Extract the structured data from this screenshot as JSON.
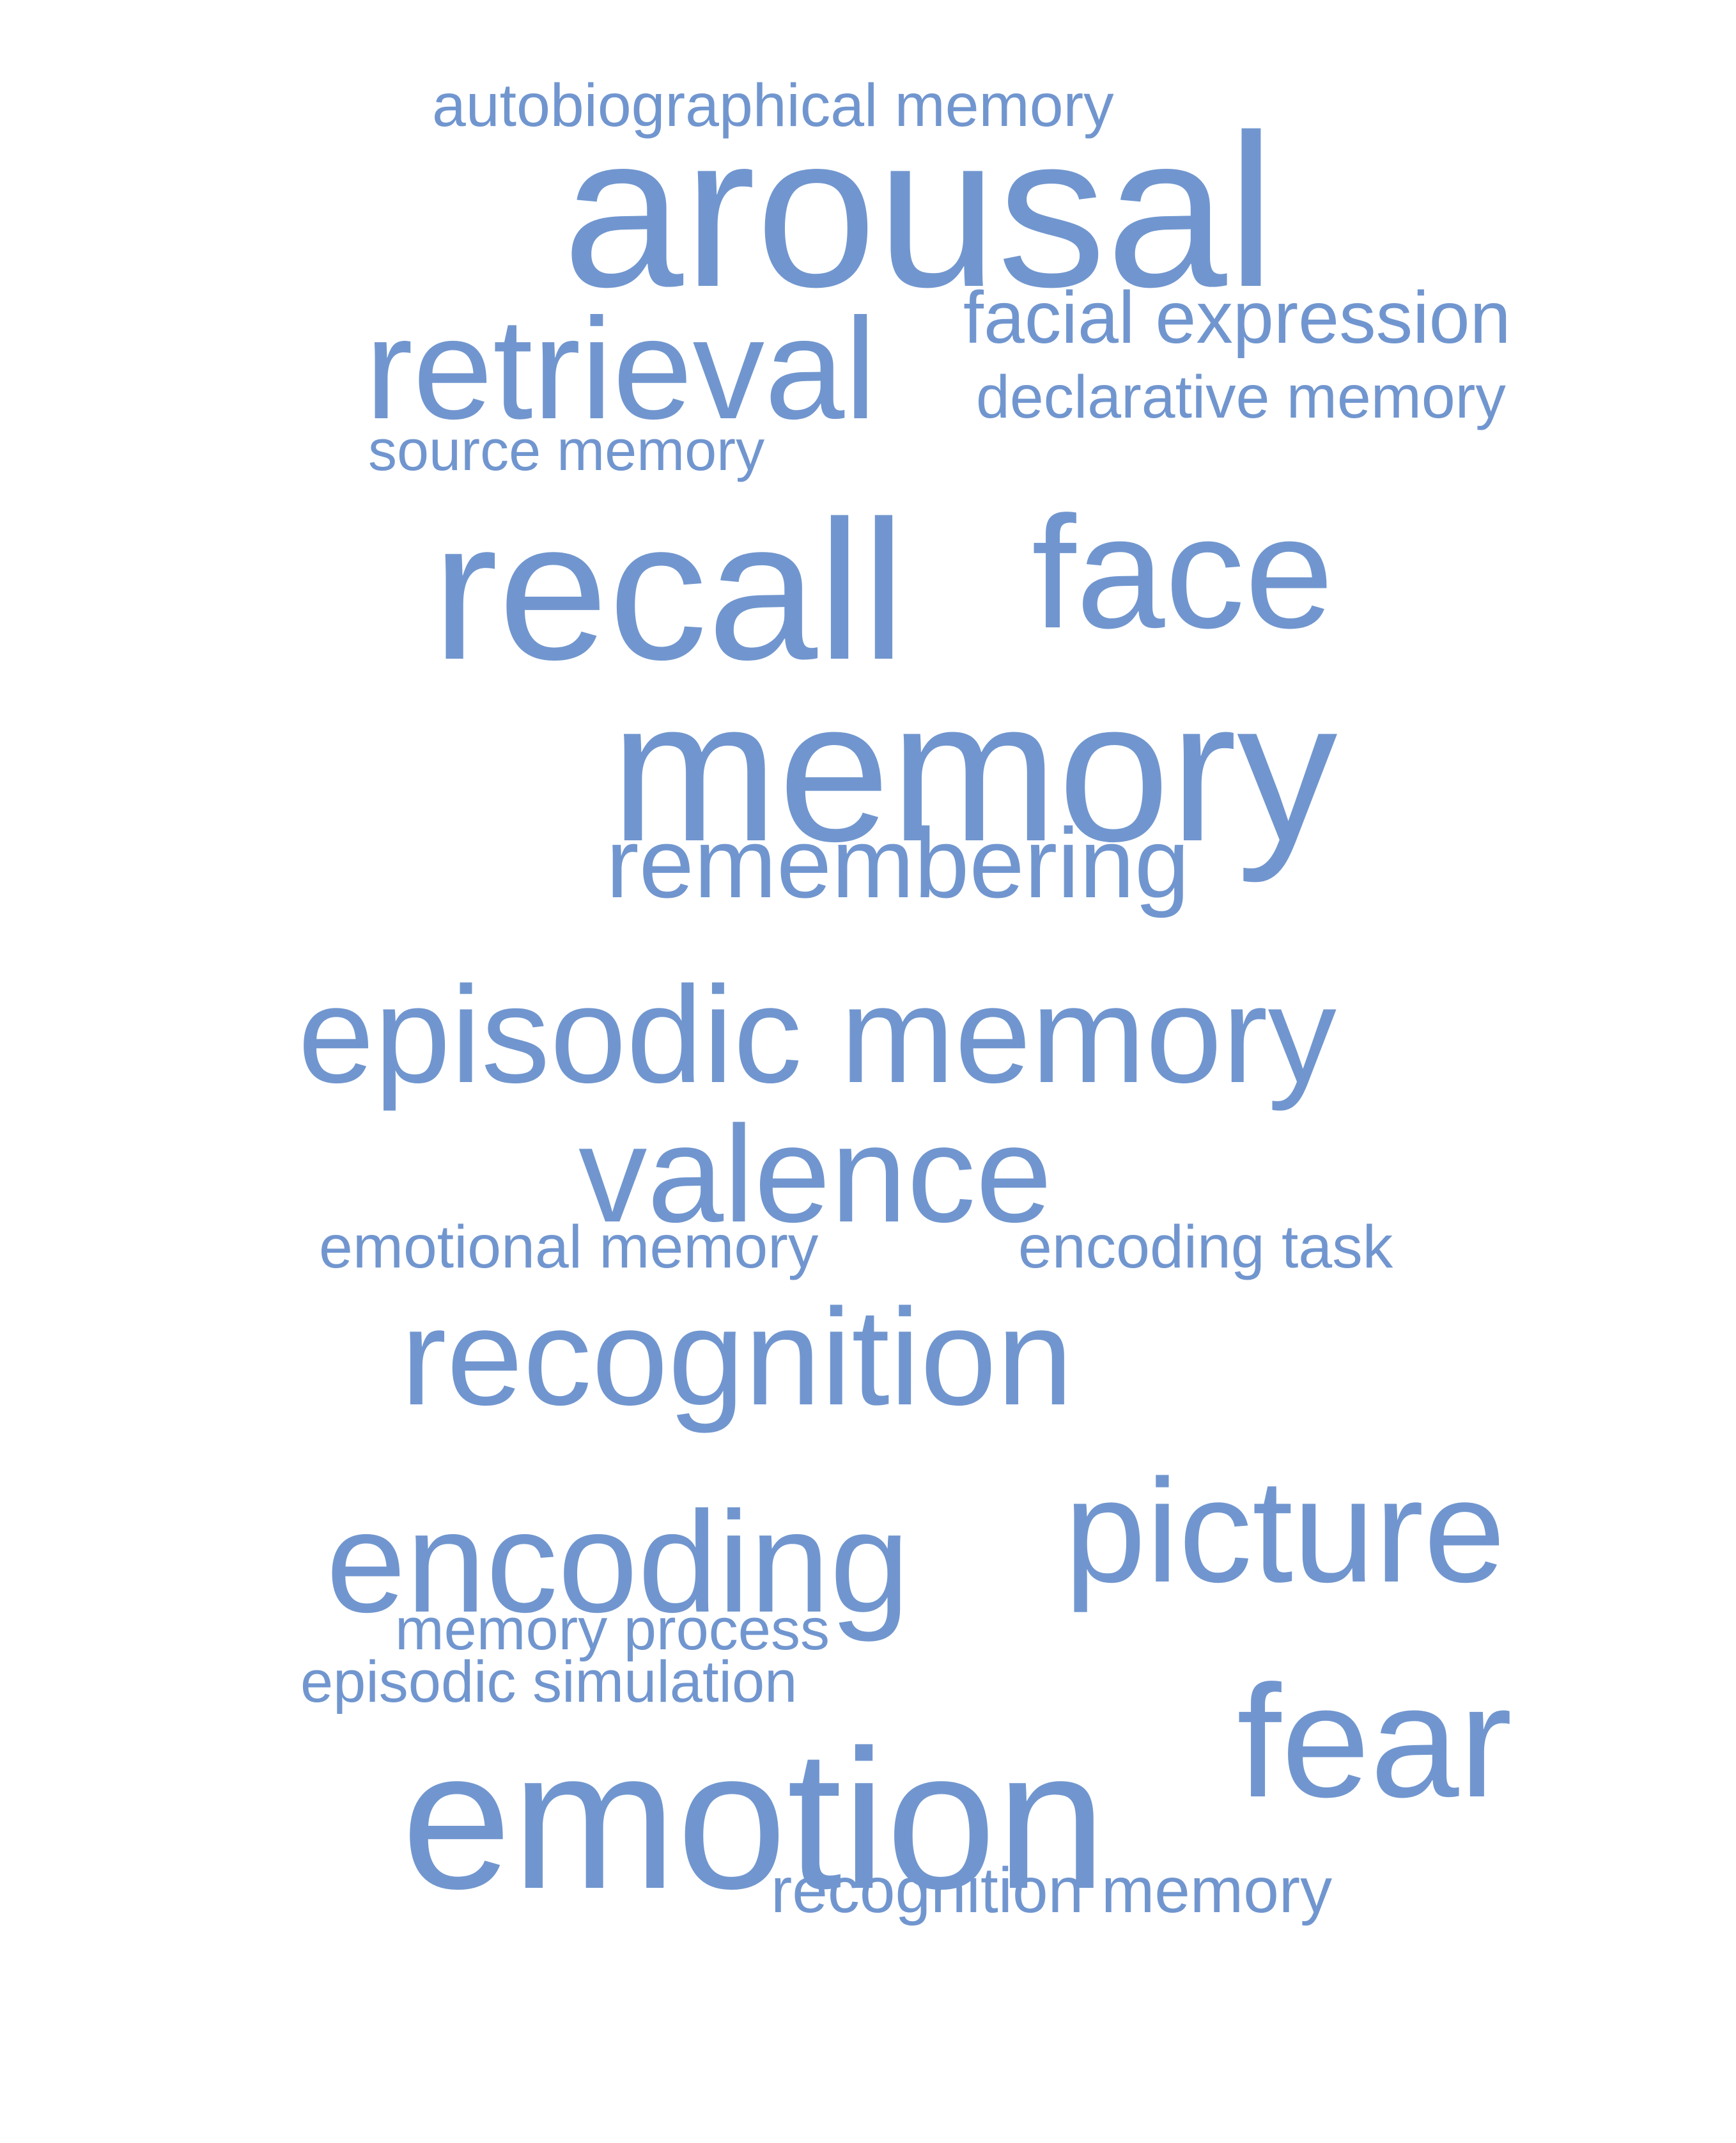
{
  "word_cloud": {
    "color": "#7196cf",
    "words": [
      {
        "text": "autobiographical memory"
      },
      {
        "text": "arousal"
      },
      {
        "text": "facial expression"
      },
      {
        "text": "retrieval"
      },
      {
        "text": "declarative memory"
      },
      {
        "text": "source memory"
      },
      {
        "text": "recall"
      },
      {
        "text": "face"
      },
      {
        "text": "memory"
      },
      {
        "text": "remembering"
      },
      {
        "text": "episodic memory"
      },
      {
        "text": "valence"
      },
      {
        "text": "emotional memory"
      },
      {
        "text": "encoding task"
      },
      {
        "text": "recognition"
      },
      {
        "text": "encoding"
      },
      {
        "text": "picture"
      },
      {
        "text": "memory process"
      },
      {
        "text": "episodic simulation"
      },
      {
        "text": "fear"
      },
      {
        "text": "emotion"
      },
      {
        "text": "recognition memory"
      }
    ]
  }
}
